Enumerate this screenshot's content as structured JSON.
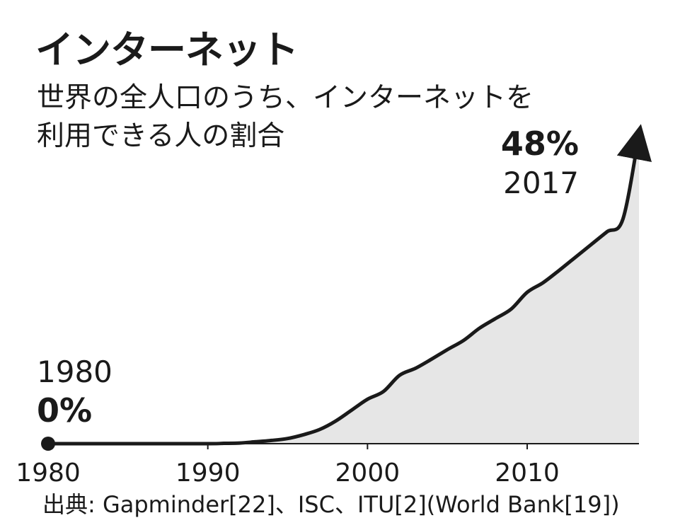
{
  "header": {
    "title": "インターネット",
    "subtitle_line1": "世界の全人口のうち、インターネットを",
    "subtitle_line2": "利用できる人の割合"
  },
  "source": "出典: Gapminder[22]、ISC、ITU[2](World Bank[19])",
  "colors": {
    "line": "#1a1a1a",
    "area_fill": "#e6e6e6",
    "text": "#1a1a1a"
  },
  "chart_data": {
    "type": "area",
    "title": "インターネット",
    "subtitle": "世界の全人口のうち、インターネットを利用できる人の割合",
    "xlabel": "",
    "ylabel": "",
    "xlim": [
      1980,
      2017
    ],
    "ylim": [
      0,
      48
    ],
    "grid": false,
    "x_ticks": [
      1980,
      1990,
      2000,
      2010
    ],
    "x_tick_labels": [
      "1980",
      "1990",
      "2000",
      "2010"
    ],
    "series": [
      {
        "x": [
          1980,
          1985,
          1990,
          1991,
          1992,
          1993,
          1994,
          1995,
          1996,
          1997,
          1998,
          1999,
          2000,
          2001,
          2002,
          2003,
          2004,
          2005,
          2006,
          2007,
          2008,
          2009,
          2010,
          2011,
          2012,
          2013,
          2014,
          2015,
          2016,
          2017
        ],
        "values": [
          0,
          0,
          0,
          0.05,
          0.1,
          0.3,
          0.5,
          0.8,
          1.4,
          2.2,
          3.5,
          5.2,
          6.9,
          8.1,
          10.6,
          11.7,
          13.1,
          14.6,
          16.0,
          17.9,
          19.4,
          20.9,
          23.5,
          25.0,
          26.9,
          28.9,
          30.9,
          32.9,
          34.9,
          48
        ]
      }
    ],
    "annotations": [
      {
        "label": "start",
        "year": "1980",
        "value": "0%"
      },
      {
        "label": "end",
        "year": "2017",
        "value": "48%"
      }
    ]
  }
}
